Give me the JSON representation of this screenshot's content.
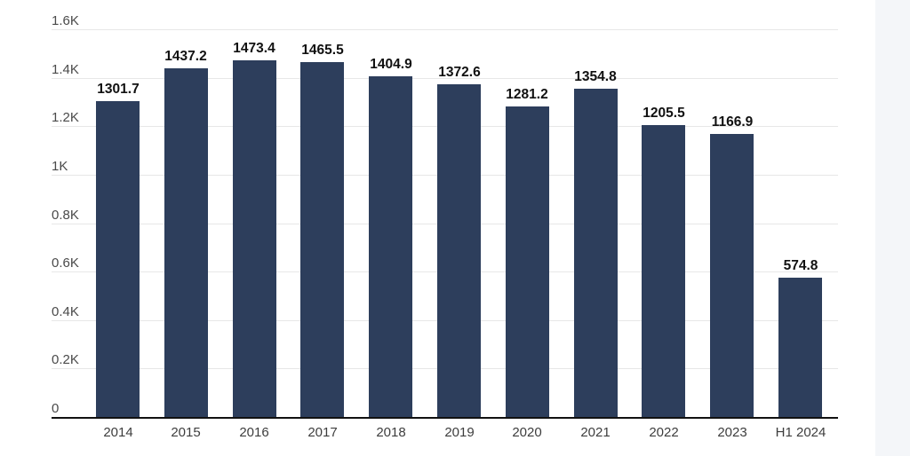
{
  "page": {
    "background_color": "#ffffff",
    "right_strip_color": "#f4f6f9"
  },
  "chart_data": {
    "type": "bar",
    "title": "",
    "xlabel": "",
    "ylabel": "",
    "categories": [
      "2014",
      "2015",
      "2016",
      "2017",
      "2018",
      "2019",
      "2020",
      "2021",
      "2022",
      "2023",
      "H1 2024"
    ],
    "values": [
      1301.7,
      1437.2,
      1473.4,
      1465.5,
      1404.9,
      1372.6,
      1281.2,
      1354.8,
      1205.5,
      1166.9,
      574.8
    ],
    "value_labels": [
      "1301.7",
      "1437.2",
      "1473.4",
      "1465.5",
      "1404.9",
      "1372.6",
      "1281.2",
      "1354.8",
      "1205.5",
      "1166.9",
      "574.8"
    ],
    "ylim": [
      0,
      1600
    ],
    "yticks": [
      {
        "value": 0,
        "label": "0"
      },
      {
        "value": 200,
        "label": "0.2K"
      },
      {
        "value": 400,
        "label": "0.4K"
      },
      {
        "value": 600,
        "label": "0.6K"
      },
      {
        "value": 800,
        "label": "0.8K"
      },
      {
        "value": 1000,
        "label": "1K"
      },
      {
        "value": 1200,
        "label": "1.2K"
      },
      {
        "value": 1400,
        "label": "1.4K"
      },
      {
        "value": 1600,
        "label": "1.6K"
      }
    ],
    "grid": true,
    "legend": null,
    "bar_color": "#2d3e5c",
    "gridline_color": "#e7e7e7",
    "axis_line_color": "#111111",
    "value_label_color": "#111111",
    "tick_label_color": "#4a4a4a"
  }
}
